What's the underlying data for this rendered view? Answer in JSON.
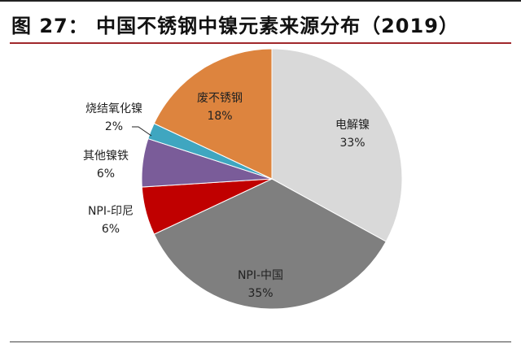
{
  "title": "图 27： 中国不锈钢中镍元素来源分布（2019）",
  "chart_data": {
    "type": "pie",
    "title": "图 27： 中国不锈钢中镍元素来源分布（2019）",
    "start": "12 o'clock, clockwise",
    "slices": [
      {
        "label": "电解镍",
        "value": 33,
        "value_label": "33%",
        "color": "#d9d9d9"
      },
      {
        "label": "NPI-中国",
        "value": 35,
        "value_label": "35%",
        "color": "#7f7f7f"
      },
      {
        "label": "NPI-印尼",
        "value": 6,
        "value_label": "6%",
        "color": "#c00000"
      },
      {
        "label": "其他镍铁",
        "value": 6,
        "value_label": "6%",
        "color": "#7a5c99"
      },
      {
        "label": "烧结氧化镍",
        "value": 2,
        "value_label": "2%",
        "color": "#3fa6c0"
      },
      {
        "label": "废不锈钢",
        "value": 18,
        "value_label": "18%",
        "color": "#dd843e"
      }
    ]
  }
}
